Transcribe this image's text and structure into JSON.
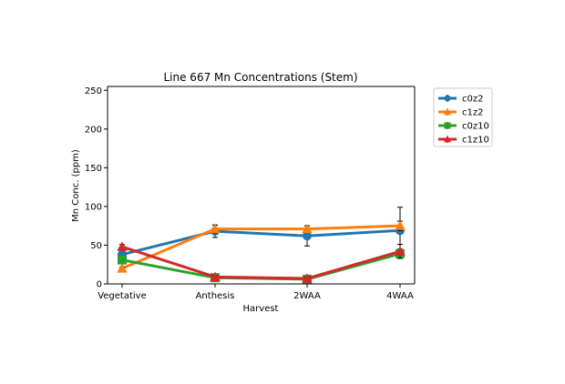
{
  "chart_data": {
    "type": "line",
    "title": "Line 667 Mn Concentrations (Stem)",
    "xlabel": "Harvest",
    "ylabel": "Mn Conc. (ppm)",
    "categories": [
      "Vegetative",
      "Anthesis",
      "2WAA",
      "4WAA"
    ],
    "ylim": [
      0,
      255
    ],
    "yticks": [
      0,
      50,
      100,
      150,
      200,
      250
    ],
    "grid": false,
    "legend_position": "outside-top-right",
    "series": [
      {
        "name": "c0z2",
        "color": "#1f77b4",
        "marker": "circle",
        "values": [
          38,
          68,
          62,
          69
        ],
        "err": [
          3,
          8,
          13,
          30
        ]
      },
      {
        "name": "c1z2",
        "color": "#ff7f0e",
        "marker": "triangle-up",
        "values": [
          20,
          71,
          71,
          75
        ],
        "err": [
          2,
          5,
          4,
          6
        ]
      },
      {
        "name": "c0z10",
        "color": "#2ca02c",
        "marker": "square",
        "values": [
          31,
          8,
          6,
          39
        ],
        "err": [
          3,
          2,
          2,
          6
        ]
      },
      {
        "name": "c1z10",
        "color": "#d62728",
        "marker": "triangle-up",
        "values": [
          48,
          9,
          7,
          42
        ],
        "err": [
          3,
          2,
          2,
          9
        ]
      }
    ]
  }
}
